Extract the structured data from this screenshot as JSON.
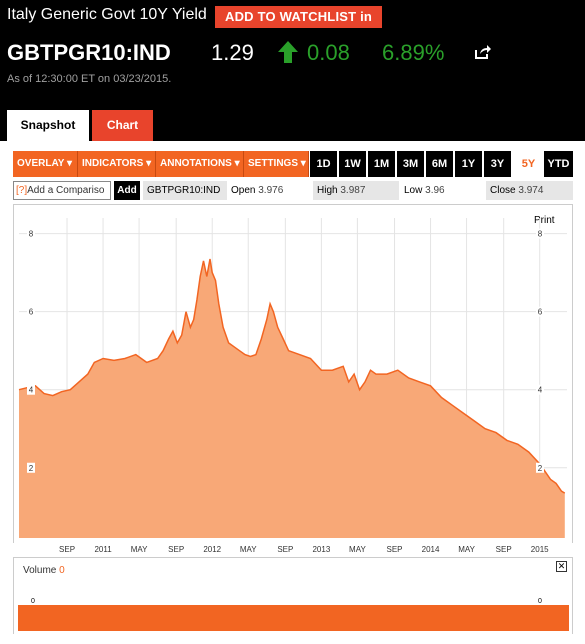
{
  "header": {
    "title": "Italy Generic Govt 10Y Yield",
    "watchlist_label": "ADD TO WATCHLIST in",
    "ticker": "GBTPGR10:IND",
    "price": "1.29",
    "change": "0.08",
    "change_pct": "6.89%",
    "as_of": "As of 12:30:00 ET on 03/23/2015.",
    "tabs": [
      "Snapshot",
      "Chart"
    ],
    "up_color": "#2aa02a",
    "accent": "#e8442c"
  },
  "toolbar": {
    "menus": [
      "OVERLAY",
      "INDICATORS",
      "ANNOTATIONS",
      "SETTINGS"
    ],
    "ranges": [
      "1D",
      "1W",
      "1M",
      "3M",
      "6M",
      "1Y",
      "3Y",
      "5Y",
      "YTD"
    ],
    "active_range": "5Y"
  },
  "infobar": {
    "compare_placeholder": "Add a Compariso",
    "compare_help": "[?]",
    "add_label": "Add",
    "symbol": "GBTPGR10:IND",
    "open_label": "Open",
    "open": "3.976",
    "high_label": "High",
    "high": "3.987",
    "low_label": "Low",
    "low": "3.96",
    "close_label": "Close",
    "close": "3.974"
  },
  "print_label": "Print",
  "volume": {
    "label": "Volume",
    "value": "0",
    "tick": "0",
    "close_icon": "close-icon"
  },
  "chart_data": {
    "type": "area",
    "color": "#f26522",
    "fill": "#f8a877",
    "ylim": [
      0.2,
      8.4
    ],
    "yticks": [
      2,
      4,
      6,
      8
    ],
    "xticks": [
      {
        "label": "SEP",
        "x": 2010.67
      },
      {
        "label": "2011",
        "x": 2011.0
      },
      {
        "label": "MAY",
        "x": 2011.33
      },
      {
        "label": "SEP",
        "x": 2011.67
      },
      {
        "label": "2012",
        "x": 2012.0
      },
      {
        "label": "MAY",
        "x": 2012.33
      },
      {
        "label": "SEP",
        "x": 2012.67
      },
      {
        "label": "2013",
        "x": 2013.0
      },
      {
        "label": "MAY",
        "x": 2013.33
      },
      {
        "label": "SEP",
        "x": 2013.67
      },
      {
        "label": "2014",
        "x": 2014.0
      },
      {
        "label": "MAY",
        "x": 2014.33
      },
      {
        "label": "SEP",
        "x": 2014.67
      },
      {
        "label": "2015",
        "x": 2015.0
      }
    ],
    "xlim": [
      2010.23,
      2015.25
    ],
    "x": [
      2010.23,
      2010.3,
      2010.38,
      2010.46,
      2010.54,
      2010.62,
      2010.7,
      2010.78,
      2010.86,
      2010.92,
      2011.0,
      2011.1,
      2011.2,
      2011.3,
      2011.4,
      2011.5,
      2011.55,
      2011.6,
      2011.64,
      2011.68,
      2011.72,
      2011.76,
      2011.8,
      2011.83,
      2011.86,
      2011.89,
      2011.92,
      2011.95,
      2011.98,
      2012.0,
      2012.03,
      2012.06,
      2012.1,
      2012.15,
      2012.2,
      2012.25,
      2012.3,
      2012.35,
      2012.4,
      2012.45,
      2012.5,
      2012.53,
      2012.56,
      2012.6,
      2012.65,
      2012.7,
      2012.8,
      2012.9,
      2013.0,
      2013.1,
      2013.2,
      2013.25,
      2013.3,
      2013.35,
      2013.4,
      2013.45,
      2013.5,
      2013.6,
      2013.7,
      2013.8,
      2013.9,
      2014.0,
      2014.1,
      2014.2,
      2014.3,
      2014.4,
      2014.5,
      2014.6,
      2014.7,
      2014.8,
      2014.9,
      2015.0,
      2015.05,
      2015.1,
      2015.15,
      2015.2,
      2015.23
    ],
    "y": [
      4.0,
      4.05,
      4.1,
      3.9,
      3.85,
      3.95,
      4.0,
      4.2,
      4.4,
      4.7,
      4.8,
      4.75,
      4.8,
      4.9,
      4.7,
      4.8,
      5.0,
      5.3,
      5.5,
      5.2,
      5.4,
      6.0,
      5.6,
      5.8,
      6.3,
      6.9,
      7.3,
      6.9,
      7.35,
      7.0,
      6.8,
      6.2,
      5.6,
      5.2,
      5.1,
      5.0,
      4.9,
      4.85,
      4.9,
      5.3,
      5.8,
      6.2,
      6.0,
      5.6,
      5.3,
      5.0,
      4.9,
      4.8,
      4.5,
      4.5,
      4.6,
      4.2,
      4.4,
      4.0,
      4.2,
      4.5,
      4.4,
      4.4,
      4.5,
      4.3,
      4.2,
      4.1,
      3.8,
      3.6,
      3.4,
      3.2,
      3.0,
      2.9,
      2.7,
      2.6,
      2.4,
      2.1,
      1.9,
      1.7,
      1.6,
      1.4,
      1.35
    ]
  }
}
